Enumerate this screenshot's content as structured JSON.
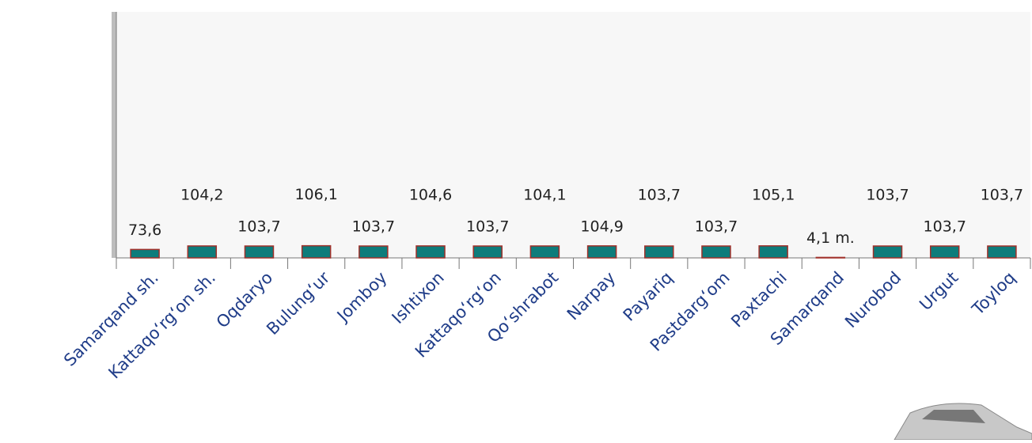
{
  "chart_data": {
    "type": "bar",
    "categories": [
      "Samarqand sh.",
      "Kattaqo‘rg‘on sh.",
      "Oqdaryo",
      "Bulung‘ur",
      "Jomboy",
      "Ishtixon",
      "Kattaqo‘rg‘on",
      "Qo‘shrabot",
      "Narpay",
      "Payariq",
      "Pastdarg‘om",
      "Paxtachi",
      "Samarqand",
      "Nurobod",
      "Urgut",
      "Toyloq"
    ],
    "values": [
      73.6,
      104.2,
      103.7,
      106.1,
      103.7,
      104.6,
      103.7,
      104.1,
      104.9,
      103.7,
      103.7,
      105.1,
      4.1,
      103.7,
      103.7,
      103.7
    ],
    "value_labels": [
      "73,6",
      "104,2",
      "103,7",
      "106,1",
      "103,7",
      "104,6",
      "103,7",
      "104,1",
      "104,9",
      "103,7",
      "103,7",
      "105,1",
      "4,1 m.",
      "103,7",
      "103,7",
      "103,7"
    ],
    "color": "#0e7c7b",
    "edge_color": "#a0302a",
    "ylim": [
      0,
      2150
    ]
  }
}
